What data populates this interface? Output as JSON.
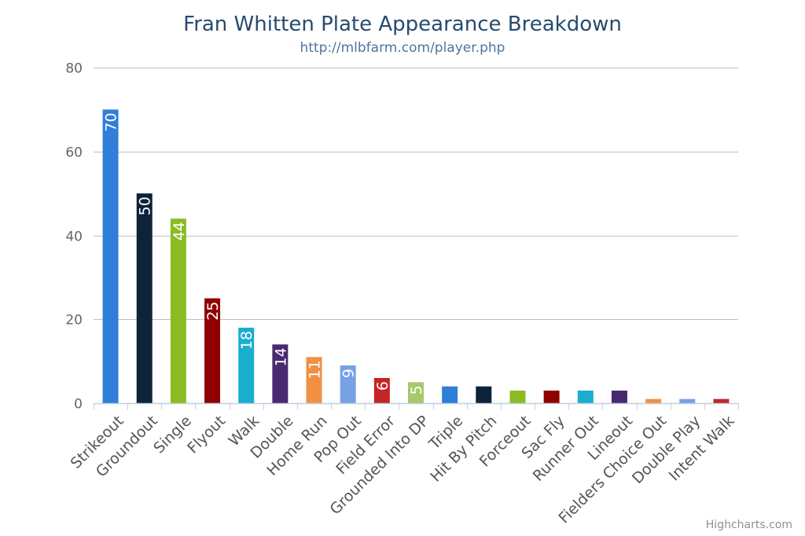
{
  "chart_data": {
    "type": "bar",
    "title": "Fran Whitten Plate Appearance Breakdown",
    "subtitle": "http://mlbfarm.com/player.php",
    "categories": [
      "Strikeout",
      "Groundout",
      "Single",
      "Flyout",
      "Walk",
      "Double",
      "Home Run",
      "Pop Out",
      "Field Error",
      "Grounded Into DP",
      "Triple",
      "Hit By Pitch",
      "Forceout",
      "Sac Fly",
      "Runner Out",
      "Lineout",
      "Fielders Choice Out",
      "Double Play",
      "Intent Walk"
    ],
    "values": [
      70,
      50,
      44,
      25,
      18,
      14,
      11,
      9,
      6,
      5,
      4,
      4,
      3,
      3,
      3,
      3,
      1,
      1,
      1
    ],
    "data_labels": [
      "70",
      "50",
      "44",
      "25",
      "18",
      "14",
      "11",
      "9",
      "6",
      "5",
      "",
      "",
      "",
      "",
      "",
      "",
      "",
      "",
      ""
    ],
    "colors": [
      "#2f7ed8",
      "#0d233a",
      "#8bbc21",
      "#910000",
      "#1aadce",
      "#492970",
      "#f28f43",
      "#77a1e5",
      "#c42525",
      "#a6c96a",
      "#2f7ed8",
      "#0d233a",
      "#8bbc21",
      "#910000",
      "#1aadce",
      "#492970",
      "#f28f43",
      "#77a1e5",
      "#c42525"
    ],
    "xlabel": "",
    "ylabel": "",
    "ylim": [
      0,
      80
    ],
    "yticks": [
      "0",
      "20",
      "40",
      "60",
      "80"
    ],
    "grid": true,
    "legend": "none"
  },
  "credits": "Highcharts.com"
}
